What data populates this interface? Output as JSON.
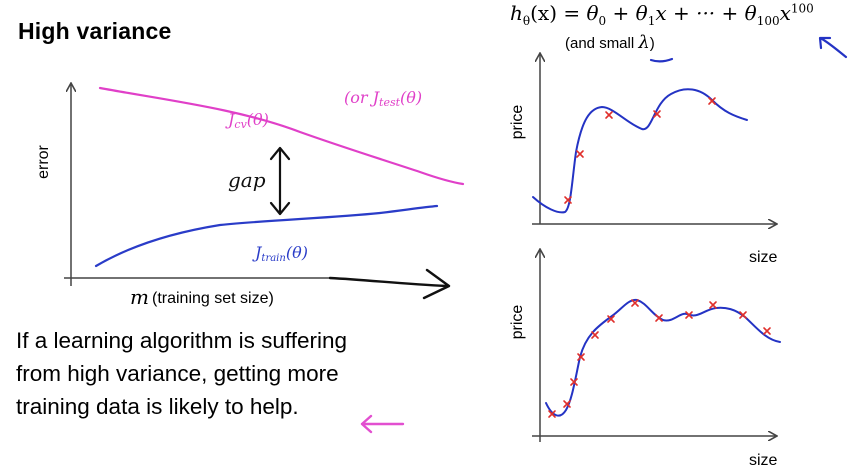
{
  "slide": {
    "title": "High variance",
    "formula": {
      "lhs": "h",
      "lhs_sub": "θ",
      "lhs_arg": "(x) = ",
      "t0": "θ",
      "t0_sub": "0",
      "plus1": " + ",
      "t1": "θ",
      "t1_sub": "1",
      "t1_tail": "x + ··· + ",
      "t100": "θ",
      "t100_sub": "100",
      "t100_var": "x",
      "t100_exp": "100"
    },
    "subnote": {
      "text": "(and small ",
      "lambda": "λ",
      "close": ")"
    },
    "paragraph": [
      "If a learning algorithm is suffering",
      "from high variance, getting more",
      "training data is likely to help."
    ]
  },
  "learning_curve": {
    "y_axis_label": "error",
    "x_axis_var": "m",
    "x_axis_label": "(training set size)",
    "cv_label": "J",
    "cv_sub": "cv",
    "cv_arg": "(θ)",
    "test_label": "(or J",
    "test_sub": "test",
    "test_arg": "(θ)",
    "train_label": "J",
    "train_sub": "train",
    "train_arg": "(θ)",
    "gap_label": "gap"
  },
  "top_plot": {
    "y_label": "price",
    "x_label": "size"
  },
  "bottom_plot": {
    "y_label": "price",
    "x_label": "size"
  },
  "colors": {
    "cv_curve": "#e040c8",
    "train_curve": "#2a3cc8",
    "fit_curve": "#2433c4",
    "data_marker": "#e0302c",
    "annotation_arrow": "#e24fd0",
    "axis": "#444444"
  }
}
